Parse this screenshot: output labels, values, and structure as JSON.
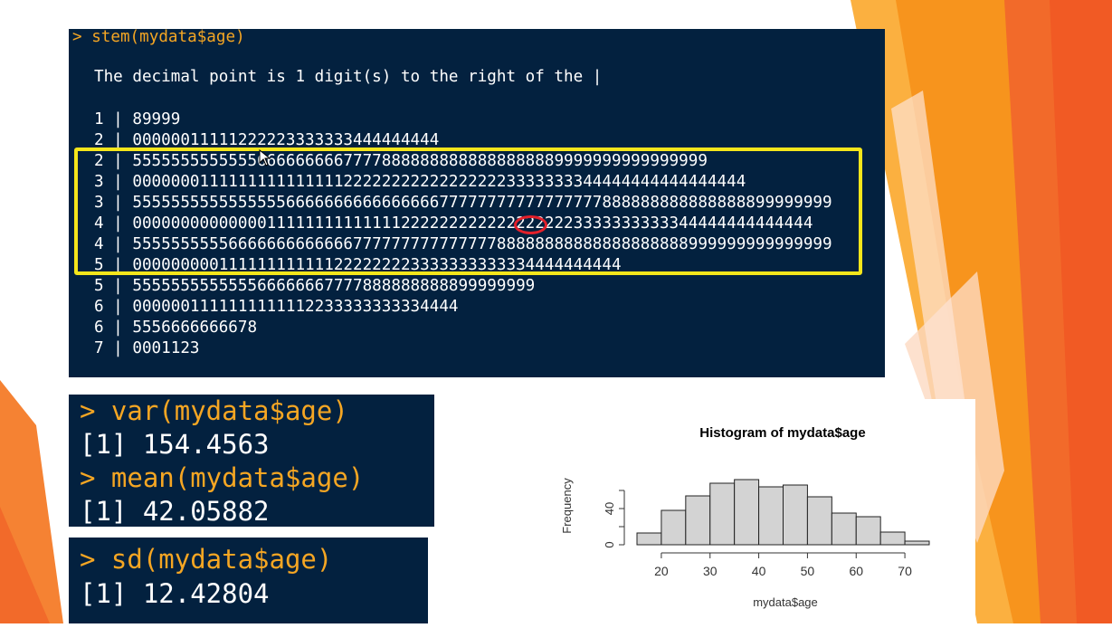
{
  "slide": {
    "background": "#ffffff",
    "accent_colors": [
      "#f7941d",
      "#f26a2a",
      "#fbb040",
      "#f15a24"
    ]
  },
  "stem_console": {
    "command_prompt": "> ",
    "command": "stem(mydata$age)",
    "note": "The decimal point is 1 digit(s) to the right of the |",
    "rows": [
      {
        "stem": "1",
        "leaves": "89999"
      },
      {
        "stem": "2",
        "leaves": "00000011111222223333333444444444"
      },
      {
        "stem": "2",
        "leaves": "555555555555566666666677778888888888888888889999999999999999"
      },
      {
        "stem": "3",
        "leaves": "0000000111111111111111222222222222222223333333344444444444444444"
      },
      {
        "stem": "3",
        "leaves": "5555555555555555666666666666666677777777777777777888888888888888899999999"
      },
      {
        "stem": "4",
        "leaves": "00000000000000111111111111112222222222222222223333333333344444444444444"
      },
      {
        "stem": "4",
        "leaves": "5555555555666666666666677777777777777788888888888888888888999999999999999"
      },
      {
        "stem": "5",
        "leaves": "000000000111111111111222222223333333333334444444444"
      },
      {
        "stem": "5",
        "leaves": "555555555555566666667777888888888899999999"
      },
      {
        "stem": "6",
        "leaves": "0000001111111111112233333333334444"
      },
      {
        "stem": "6",
        "leaves": "5556666666678"
      },
      {
        "stem": "7",
        "leaves": "0001123"
      }
    ],
    "highlight_color": "#f5e61b",
    "circle_color": "#e3202a"
  },
  "var_console": {
    "lines": [
      {
        "prompt": "> ",
        "text": "var(mydata$age)"
      },
      {
        "prompt": "",
        "text": "[1] 154.4563"
      },
      {
        "prompt": "> ",
        "text": "mean(mydata$age)"
      },
      {
        "prompt": "",
        "text": "[1] 42.05882"
      }
    ]
  },
  "sd_console": {
    "lines": [
      {
        "prompt": "> ",
        "text": "sd(mydata$age)"
      },
      {
        "prompt": "",
        "text": "[1] 12.42804"
      }
    ]
  },
  "chart_data": {
    "type": "bar",
    "title": "Histogram of mydata$age",
    "xlabel": "mydata$age",
    "ylabel": "Frequency",
    "bin_edges": [
      15,
      20,
      25,
      30,
      35,
      40,
      45,
      50,
      55,
      60,
      65,
      70,
      75
    ],
    "values": [
      13,
      38,
      54,
      68,
      72,
      64,
      66,
      53,
      35,
      31,
      14,
      4
    ],
    "xticks": [
      20,
      30,
      40,
      50,
      60,
      70
    ],
    "yticks": [
      0,
      40
    ],
    "ylim": [
      0,
      80
    ],
    "bar_fill": "#d3d3d3",
    "bar_stroke": "#222222"
  }
}
